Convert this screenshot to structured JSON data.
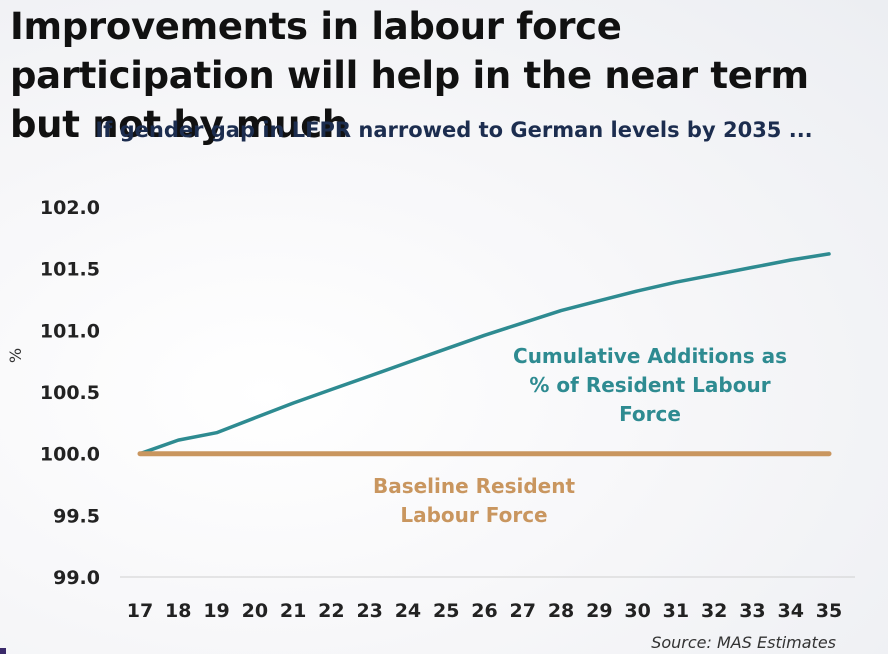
{
  "title": "Improvements in labour force participation will help in the near term but not by much",
  "subtitle": "If gender gap in LFPR narrowed to German levels by 2035 ...",
  "source": "Source: MAS Estimates",
  "colors": {
    "background": "#f5f6f8",
    "axis_text": "#222222",
    "gridline": "#d9d9d9",
    "cumulative": "#2e8b91",
    "baseline": "#c9965f"
  },
  "chart_data": {
    "type": "line",
    "title": "Improvements in labour force participation will help in the near term but not by much",
    "subtitle": "If gender gap in LFPR narrowed to German levels by 2035 ...",
    "xlabel": "",
    "ylabel": "%",
    "x": [
      "17",
      "18",
      "19",
      "20",
      "21",
      "22",
      "23",
      "24",
      "25",
      "26",
      "27",
      "28",
      "29",
      "30",
      "31",
      "32",
      "33",
      "34",
      "35"
    ],
    "ylim": [
      99.0,
      102.0
    ],
    "yticks": [
      "102.0",
      "101.5",
      "101.0",
      "100.5",
      "100.0",
      "99.5",
      "99.0"
    ],
    "grid": false,
    "series": [
      {
        "name": "Cumulative Additions as % of Resident Labour Force",
        "label_lines": [
          "Cumulative Additions as",
          "% of Resident Labour",
          "Force"
        ],
        "color": "#2e8b91",
        "values": [
          100.0,
          100.11,
          100.17,
          100.29,
          100.41,
          100.52,
          100.63,
          100.74,
          100.85,
          100.96,
          101.06,
          101.16,
          101.24,
          101.32,
          101.39,
          101.45,
          101.51,
          101.57,
          101.62
        ]
      },
      {
        "name": "Baseline Resident Labour Force",
        "label_lines": [
          "Baseline Resident",
          "Labour Force"
        ],
        "color": "#c9965f",
        "values": [
          100.0,
          100.0,
          100.0,
          100.0,
          100.0,
          100.0,
          100.0,
          100.0,
          100.0,
          100.0,
          100.0,
          100.0,
          100.0,
          100.0,
          100.0,
          100.0,
          100.0,
          100.0,
          100.0
        ]
      }
    ],
    "source": "Source: MAS Estimates"
  }
}
